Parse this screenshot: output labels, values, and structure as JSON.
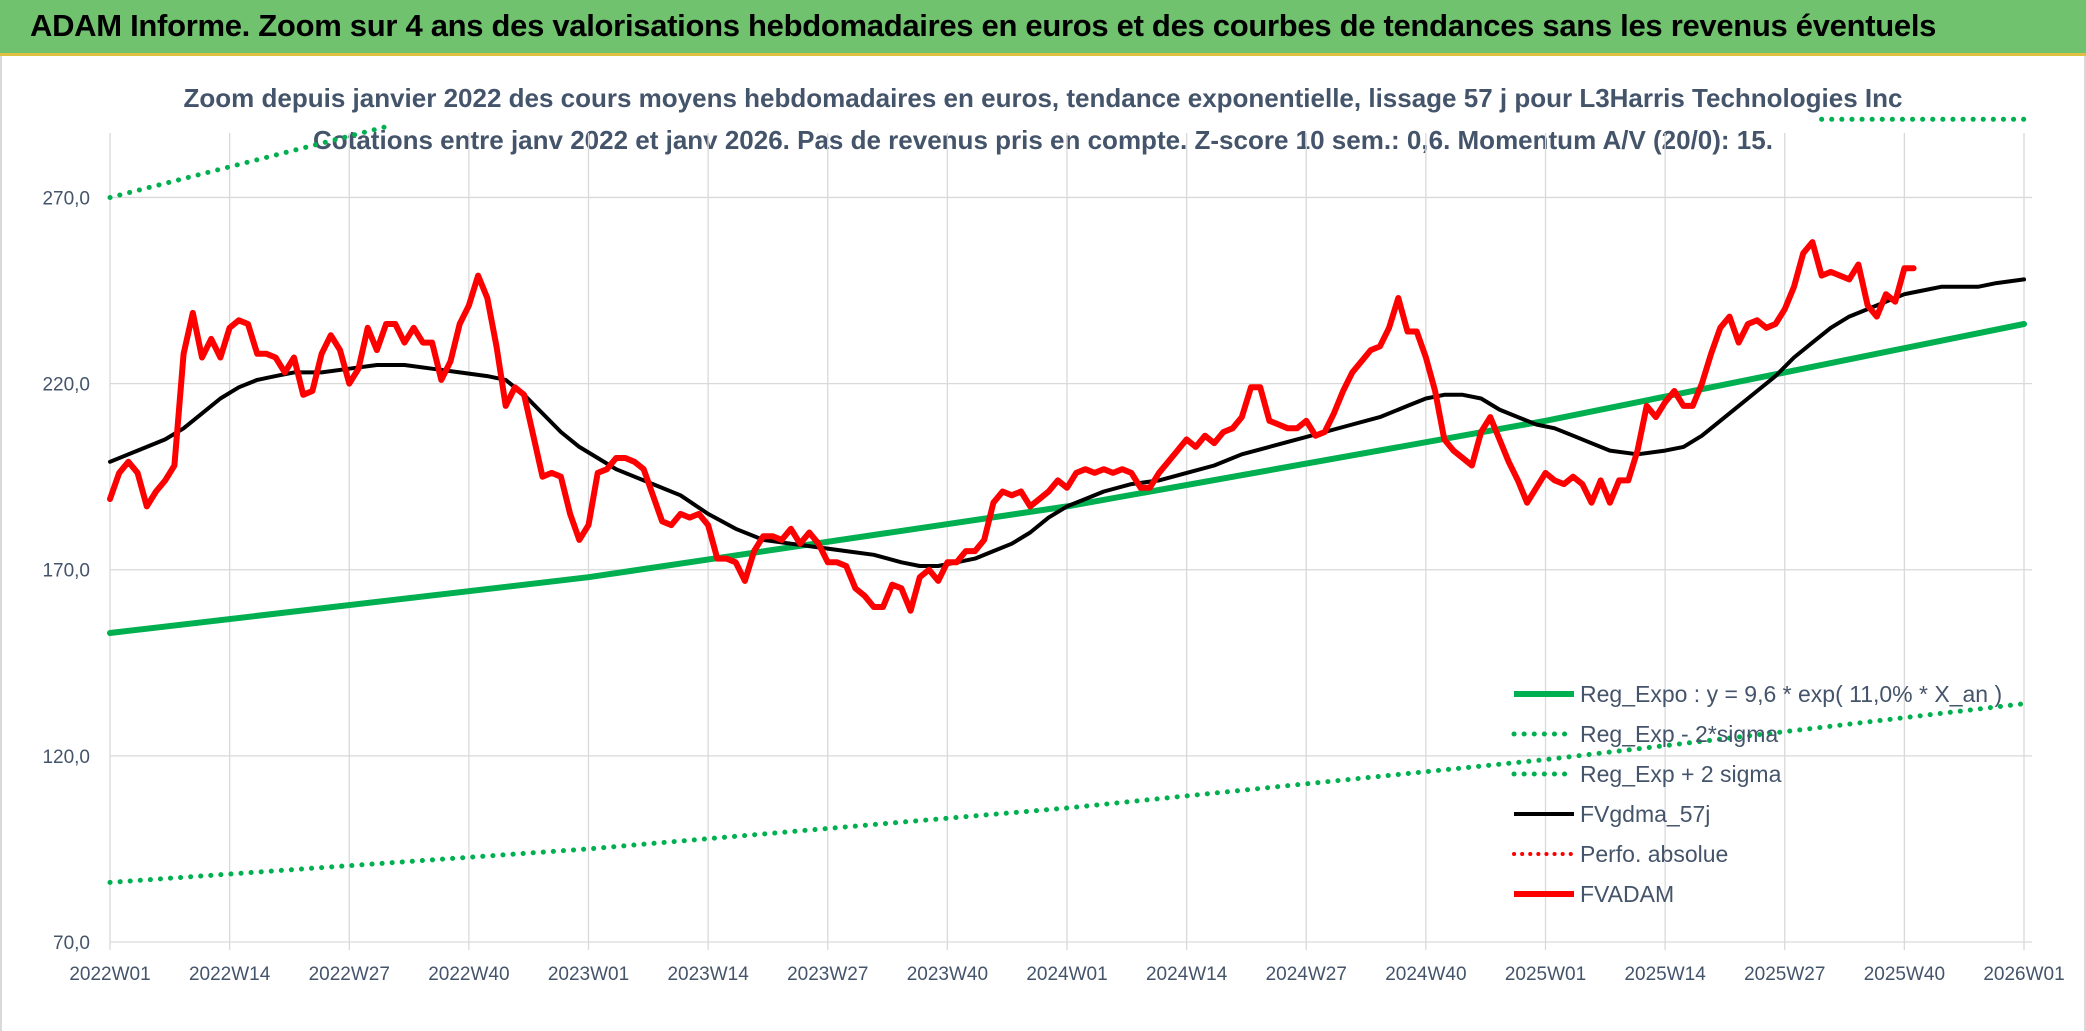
{
  "header": {
    "title": "ADAM Informe. Zoom sur 4 ans des valorisations hebdomadaires en euros et des courbes de tendances sans les revenus éventuels",
    "bg_color": "#70c26e"
  },
  "chart_data": {
    "type": "line",
    "title_line1": "Zoom depuis janvier 2022 des cours moyens hebdomadaires en euros, tendance exponentielle, lissage 57 j pour L3Harris Technologies Inc",
    "title_line2": "Cotations entre janv 2022 et janv 2026. Pas de revenus pris en compte. Z-score 10 sem.: 0,6. Momentum A/V (20/0): 15.",
    "ylim": [
      70,
      290
    ],
    "y_ticks": [
      "70,0",
      "120,0",
      "170,0",
      "220,0",
      "270,0"
    ],
    "y_tick_values": [
      70,
      120,
      170,
      220,
      270
    ],
    "x_range": [
      0,
      208
    ],
    "x_ticks": [
      "2022W01",
      "2022W14",
      "2022W27",
      "2022W40",
      "2023W01",
      "2023W14",
      "2023W27",
      "2023W40",
      "2024W01",
      "2024W14",
      "2024W27",
      "2024W40",
      "2025W01",
      "2025W14",
      "2025W27",
      "2025W40",
      "2026W01"
    ],
    "x_tick_weeks": [
      0,
      13,
      26,
      39,
      52,
      65,
      78,
      91,
      104,
      117,
      130,
      143,
      156,
      169,
      182,
      195,
      208
    ],
    "grid": true,
    "legend_position": "bottom-right",
    "colors": {
      "reg": "#00b050",
      "fvgdma": "#000000",
      "fvadam": "#ff0000"
    },
    "series": [
      {
        "name": "Reg_Expo : y = 9,6 * exp( 11,0% *  X_an )",
        "style": "solid-green",
        "points": [
          [
            0,
            153
          ],
          [
            52,
            168
          ],
          [
            104,
            187
          ],
          [
            156,
            210
          ],
          [
            208,
            236
          ]
        ]
      },
      {
        "name": "Reg_Exp - 2*sigma",
        "style": "dotted-green",
        "points": [
          [
            0,
            86
          ],
          [
            52,
            95
          ],
          [
            104,
            106
          ],
          [
            156,
            119
          ],
          [
            208,
            134
          ]
        ]
      },
      {
        "name": "Reg_Exp + 2 sigma",
        "style": "dotted-green",
        "points": [
          [
            0,
            270
          ],
          [
            30,
            289
          ]
        ],
        "points_b": [
          [
            186,
            291
          ],
          [
            208,
            291
          ]
        ]
      },
      {
        "name": "FVgdma_57j",
        "style": "solid-black",
        "points": [
          [
            0,
            199
          ],
          [
            3,
            202
          ],
          [
            6,
            205
          ],
          [
            8,
            208
          ],
          [
            10,
            212
          ],
          [
            12,
            216
          ],
          [
            14,
            219
          ],
          [
            16,
            221
          ],
          [
            18,
            222
          ],
          [
            20,
            223
          ],
          [
            23,
            223
          ],
          [
            26,
            224
          ],
          [
            29,
            225
          ],
          [
            32,
            225
          ],
          [
            35,
            224
          ],
          [
            38,
            223
          ],
          [
            41,
            222
          ],
          [
            43,
            221
          ],
          [
            45,
            217
          ],
          [
            47,
            212
          ],
          [
            49,
            207
          ],
          [
            51,
            203
          ],
          [
            53,
            200
          ],
          [
            55,
            197
          ],
          [
            57,
            195
          ],
          [
            59,
            193
          ],
          [
            62,
            190
          ],
          [
            65,
            185
          ],
          [
            68,
            181
          ],
          [
            71,
            178
          ],
          [
            74,
            177
          ],
          [
            77,
            176
          ],
          [
            80,
            175
          ],
          [
            83,
            174
          ],
          [
            86,
            172
          ],
          [
            88,
            171
          ],
          [
            90,
            171
          ],
          [
            92,
            172
          ],
          [
            94,
            173
          ],
          [
            96,
            175
          ],
          [
            98,
            177
          ],
          [
            100,
            180
          ],
          [
            102,
            184
          ],
          [
            104,
            187
          ],
          [
            106,
            189
          ],
          [
            108,
            191
          ],
          [
            111,
            193
          ],
          [
            114,
            194
          ],
          [
            117,
            196
          ],
          [
            120,
            198
          ],
          [
            123,
            201
          ],
          [
            126,
            203
          ],
          [
            129,
            205
          ],
          [
            132,
            207
          ],
          [
            135,
            209
          ],
          [
            138,
            211
          ],
          [
            141,
            214
          ],
          [
            143,
            216
          ],
          [
            145,
            217
          ],
          [
            147,
            217
          ],
          [
            149,
            216
          ],
          [
            151,
            213
          ],
          [
            153,
            211
          ],
          [
            155,
            209
          ],
          [
            157,
            208
          ],
          [
            159,
            206
          ],
          [
            161,
            204
          ],
          [
            163,
            202
          ],
          [
            166,
            201
          ],
          [
            169,
            202
          ],
          [
            171,
            203
          ],
          [
            173,
            206
          ],
          [
            175,
            210
          ],
          [
            177,
            214
          ],
          [
            179,
            218
          ],
          [
            181,
            222
          ],
          [
            183,
            227
          ],
          [
            185,
            231
          ],
          [
            187,
            235
          ],
          [
            189,
            238
          ],
          [
            191,
            240
          ],
          [
            193,
            242
          ],
          [
            195,
            244
          ],
          [
            197,
            245
          ],
          [
            199,
            246
          ],
          [
            201,
            246
          ],
          [
            203,
            246
          ],
          [
            205,
            247
          ],
          [
            208,
            248
          ]
        ]
      },
      {
        "name": "Perfo. absolue",
        "style": "dotted-red",
        "points": []
      },
      {
        "name": "FVADAM",
        "style": "solid-red",
        "points": [
          [
            0,
            189
          ],
          [
            1,
            196
          ],
          [
            2,
            199
          ],
          [
            3,
            196
          ],
          [
            4,
            187
          ],
          [
            5,
            191
          ],
          [
            6,
            194
          ],
          [
            7,
            198
          ],
          [
            8,
            228
          ],
          [
            9,
            239
          ],
          [
            10,
            227
          ],
          [
            11,
            232
          ],
          [
            12,
            227
          ],
          [
            13,
            235
          ],
          [
            14,
            237
          ],
          [
            15,
            236
          ],
          [
            16,
            228
          ],
          [
            17,
            228
          ],
          [
            18,
            227
          ],
          [
            19,
            223
          ],
          [
            20,
            227
          ],
          [
            21,
            217
          ],
          [
            22,
            218
          ],
          [
            23,
            228
          ],
          [
            24,
            233
          ],
          [
            25,
            229
          ],
          [
            26,
            220
          ],
          [
            27,
            224
          ],
          [
            28,
            235
          ],
          [
            29,
            229
          ],
          [
            30,
            236
          ],
          [
            31,
            236
          ],
          [
            32,
            231
          ],
          [
            33,
            235
          ],
          [
            34,
            231
          ],
          [
            35,
            231
          ],
          [
            36,
            221
          ],
          [
            37,
            226
          ],
          [
            38,
            236
          ],
          [
            39,
            241
          ],
          [
            40,
            249
          ],
          [
            41,
            243
          ],
          [
            42,
            230
          ],
          [
            43,
            214
          ],
          [
            44,
            219
          ],
          [
            45,
            217
          ],
          [
            46,
            206
          ],
          [
            47,
            195
          ],
          [
            48,
            196
          ],
          [
            49,
            195
          ],
          [
            50,
            185
          ],
          [
            51,
            178
          ],
          [
            52,
            182
          ],
          [
            53,
            196
          ],
          [
            54,
            197
          ],
          [
            55,
            200
          ],
          [
            56,
            200
          ],
          [
            57,
            199
          ],
          [
            58,
            197
          ],
          [
            59,
            190
          ],
          [
            60,
            183
          ],
          [
            61,
            182
          ],
          [
            62,
            185
          ],
          [
            63,
            184
          ],
          [
            64,
            185
          ],
          [
            65,
            182
          ],
          [
            66,
            173
          ],
          [
            67,
            173
          ],
          [
            68,
            172
          ],
          [
            69,
            167
          ],
          [
            70,
            175
          ],
          [
            71,
            179
          ],
          [
            72,
            179
          ],
          [
            73,
            178
          ],
          [
            74,
            181
          ],
          [
            75,
            177
          ],
          [
            76,
            180
          ],
          [
            77,
            177
          ],
          [
            78,
            172
          ],
          [
            79,
            172
          ],
          [
            80,
            171
          ],
          [
            81,
            165
          ],
          [
            82,
            163
          ],
          [
            83,
            160
          ],
          [
            84,
            160
          ],
          [
            85,
            166
          ],
          [
            86,
            165
          ],
          [
            87,
            159
          ],
          [
            88,
            168
          ],
          [
            89,
            170
          ],
          [
            90,
            167
          ],
          [
            91,
            172
          ],
          [
            92,
            172
          ],
          [
            93,
            175
          ],
          [
            94,
            175
          ],
          [
            95,
            178
          ],
          [
            96,
            188
          ],
          [
            97,
            191
          ],
          [
            98,
            190
          ],
          [
            99,
            191
          ],
          [
            100,
            187
          ],
          [
            101,
            189
          ],
          [
            102,
            191
          ],
          [
            103,
            194
          ],
          [
            104,
            192
          ],
          [
            105,
            196
          ],
          [
            106,
            197
          ],
          [
            107,
            196
          ],
          [
            108,
            197
          ],
          [
            109,
            196
          ],
          [
            110,
            197
          ],
          [
            111,
            196
          ],
          [
            112,
            192
          ],
          [
            113,
            192
          ],
          [
            114,
            196
          ],
          [
            115,
            199
          ],
          [
            116,
            202
          ],
          [
            117,
            205
          ],
          [
            118,
            203
          ],
          [
            119,
            206
          ],
          [
            120,
            204
          ],
          [
            121,
            207
          ],
          [
            122,
            208
          ],
          [
            123,
            211
          ],
          [
            124,
            219
          ],
          [
            125,
            219
          ],
          [
            126,
            210
          ],
          [
            127,
            209
          ],
          [
            128,
            208
          ],
          [
            129,
            208
          ],
          [
            130,
            210
          ],
          [
            131,
            206
          ],
          [
            132,
            207
          ],
          [
            133,
            212
          ],
          [
            134,
            218
          ],
          [
            135,
            223
          ],
          [
            136,
            226
          ],
          [
            137,
            229
          ],
          [
            138,
            230
          ],
          [
            139,
            235
          ],
          [
            140,
            243
          ],
          [
            141,
            234
          ],
          [
            142,
            234
          ],
          [
            143,
            227
          ],
          [
            144,
            218
          ],
          [
            145,
            205
          ],
          [
            146,
            202
          ],
          [
            147,
            200
          ],
          [
            148,
            198
          ],
          [
            149,
            207
          ],
          [
            150,
            211
          ],
          [
            151,
            205
          ],
          [
            152,
            199
          ],
          [
            153,
            194
          ],
          [
            154,
            188
          ],
          [
            155,
            192
          ],
          [
            156,
            196
          ],
          [
            157,
            194
          ],
          [
            158,
            193
          ],
          [
            159,
            195
          ],
          [
            160,
            193
          ],
          [
            161,
            188
          ],
          [
            162,
            194
          ],
          [
            163,
            188
          ],
          [
            164,
            194
          ],
          [
            165,
            194
          ],
          [
            166,
            202
          ],
          [
            167,
            214
          ],
          [
            168,
            211
          ],
          [
            169,
            215
          ],
          [
            170,
            218
          ],
          [
            171,
            214
          ],
          [
            172,
            214
          ],
          [
            173,
            220
          ],
          [
            174,
            228
          ],
          [
            175,
            235
          ],
          [
            176,
            238
          ],
          [
            177,
            231
          ],
          [
            178,
            236
          ],
          [
            179,
            237
          ],
          [
            180,
            235
          ],
          [
            181,
            236
          ],
          [
            182,
            240
          ],
          [
            183,
            246
          ],
          [
            184,
            255
          ],
          [
            185,
            258
          ],
          [
            186,
            249
          ],
          [
            187,
            250
          ],
          [
            188,
            249
          ],
          [
            189,
            248
          ],
          [
            190,
            252
          ],
          [
            191,
            241
          ],
          [
            192,
            238
          ],
          [
            193,
            244
          ],
          [
            194,
            242
          ],
          [
            195,
            251
          ],
          [
            196,
            251
          ]
        ]
      }
    ]
  },
  "legend": {
    "items": [
      {
        "label": "Reg_Expo : y = 9,6 * exp( 11,0% *  X_an )",
        "style": "solid-green"
      },
      {
        "label": "Reg_Exp - 2*sigma",
        "style": "dotted-green"
      },
      {
        "label": "Reg_Exp + 2 sigma",
        "style": "dotted-green"
      },
      {
        "label": "FVgdma_57j",
        "style": "solid-black"
      },
      {
        "label": "Perfo. absolue",
        "style": "dotted-red"
      },
      {
        "label": "FVADAM",
        "style": "solid-red"
      }
    ]
  }
}
